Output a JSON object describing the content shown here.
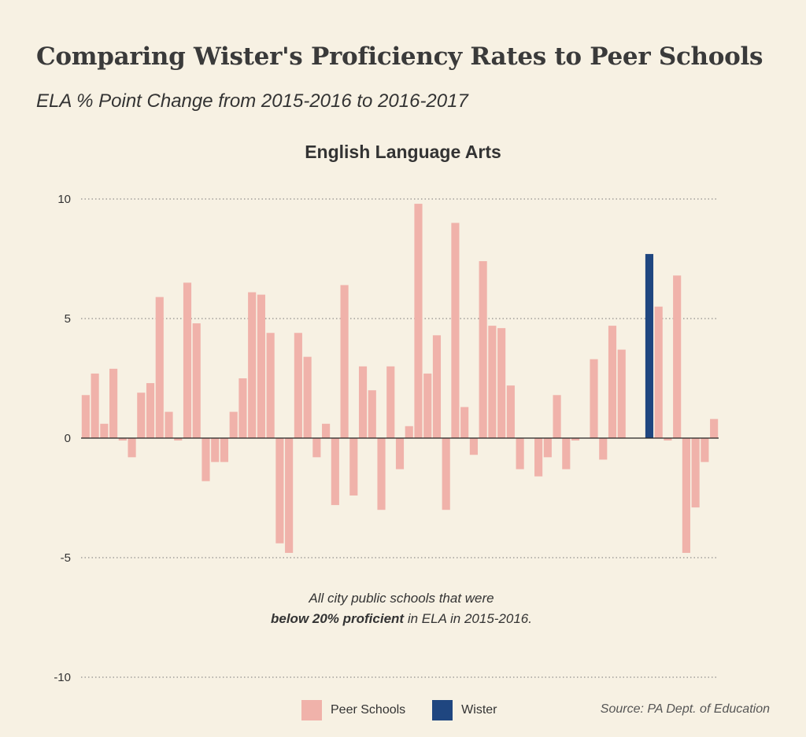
{
  "header": {
    "title": "Comparing Wister's Proficiency Rates to Peer Schools",
    "subtitle": "ELA % Point Change from 2015-2016 to 2016-2017"
  },
  "note": {
    "line1": "All city public schools that were",
    "bold": "below 20% proficient",
    "rest": " in ELA in 2015-2016."
  },
  "legend": {
    "peer": "Peer Schools",
    "wister": "Wister"
  },
  "source": "Source: PA Dept. of Education",
  "colors": {
    "peer": "#f0b2aa",
    "wister": "#1f4680",
    "background": "#f7f1e3"
  },
  "chart_data": {
    "type": "bar",
    "title": "English Language Arts",
    "xlabel": "",
    "ylabel": "",
    "ylim": [
      -10,
      10
    ],
    "yticks": [
      10,
      5,
      0,
      -5,
      -10
    ],
    "ytick_labels": [
      "10",
      "5",
      "0",
      "-5",
      "-10"
    ],
    "grid": true,
    "highlight_index": 61,
    "series": [
      {
        "values": [
          1.8,
          2.7,
          0.6,
          2.9,
          -0.1,
          -0.8,
          1.9,
          2.3,
          5.9,
          1.1,
          -0.1,
          6.5,
          4.8,
          -1.8,
          -1.0,
          -1.0,
          1.1,
          2.5,
          6.1,
          6.0,
          4.4,
          -4.4,
          -4.8,
          4.4,
          3.4,
          -0.8,
          0.6,
          -2.8,
          6.4,
          -2.4,
          3.0,
          2.0,
          -3.0,
          3.0,
          -1.3,
          0.5,
          9.8,
          2.7,
          4.3,
          -3.0,
          9.0,
          1.3,
          -0.7,
          7.4,
          4.7,
          4.6,
          2.2,
          -1.3,
          0.0,
          -1.6,
          -0.8,
          1.8,
          -1.3,
          -0.1,
          0.0,
          3.3,
          -0.9,
          4.7,
          3.7,
          0.0,
          0.0,
          7.7,
          5.5,
          -0.1,
          6.8,
          -4.8,
          -2.9,
          -1.0,
          0.8
        ]
      }
    ]
  }
}
